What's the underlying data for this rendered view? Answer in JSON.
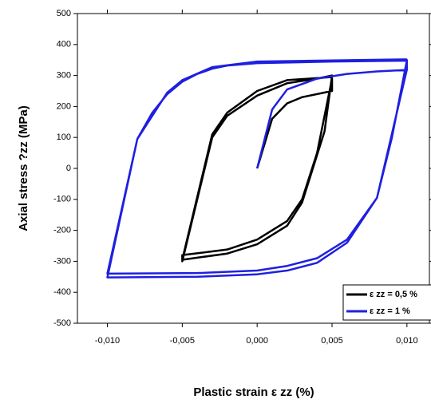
{
  "chart_data": {
    "type": "line",
    "xlabel": "Plastic strain ε zz (%)",
    "ylabel": "Axial stress ?zz (MPa)",
    "xlim": [
      -0.012,
      0.0115
    ],
    "ylim": [
      -500,
      500
    ],
    "xticks": [
      {
        "value": -0.01,
        "label": "-0,010"
      },
      {
        "value": -0.005,
        "label": "-0,005"
      },
      {
        "value": 0,
        "label": "0,000"
      },
      {
        "value": 0.005,
        "label": "0,005"
      },
      {
        "value": 0.01,
        "label": "0,010"
      }
    ],
    "yticks": [
      -500,
      -400,
      -300,
      -200,
      -100,
      0,
      100,
      200,
      300,
      400,
      500
    ],
    "legend": "lower right",
    "series": [
      {
        "name": "ε zz = 0,5 %",
        "color": "#000000",
        "x": [
          0,
          0.001,
          0.002,
          0.003,
          0.005,
          0.005,
          0.004,
          0.003,
          0.002,
          0,
          -0.002,
          -0.005,
          -0.005,
          -0.004,
          -0.003,
          -0.002,
          0,
          0.002,
          0.004,
          0.005,
          0.0045,
          0.003,
          0.002,
          0,
          -0.002,
          -0.005,
          -0.003,
          -0.002,
          0,
          0.002,
          0.005
        ],
        "values": [
          0,
          160,
          210,
          230,
          250,
          290,
          50,
          -100,
          -170,
          -230,
          -262,
          -280,
          -300,
          -100,
          100,
          170,
          235,
          275,
          290,
          300,
          120,
          -110,
          -185,
          -245,
          -275,
          -295,
          110,
          180,
          250,
          285,
          295
        ]
      },
      {
        "name": "ε zz = 1 %",
        "color": "#1f1fe0",
        "x": [
          0,
          0.001,
          0.002,
          0.004,
          0.006,
          0.008,
          0.01,
          0.01,
          0.009,
          0.008,
          0.006,
          0.004,
          0.002,
          0,
          -0.004,
          -0.01,
          -0.008,
          -0.007,
          -0.006,
          -0.005,
          -0.004,
          -0.003,
          -0.002,
          0,
          0.005,
          0.01,
          0.01,
          0.008,
          0.006,
          0.004,
          0.002,
          0,
          -0.004,
          -0.01,
          -0.008,
          -0.006,
          -0.005,
          -0.003,
          0,
          0.01
        ],
        "values": [
          0,
          190,
          255,
          290,
          305,
          313,
          318,
          350,
          100,
          -95,
          -230,
          -290,
          -315,
          -330,
          -338,
          -340,
          95,
          180,
          240,
          280,
          305,
          322,
          332,
          340,
          345,
          348,
          320,
          -95,
          -240,
          -305,
          -330,
          -342,
          -350,
          -352,
          95,
          245,
          285,
          327,
          345,
          352
        ]
      }
    ]
  }
}
